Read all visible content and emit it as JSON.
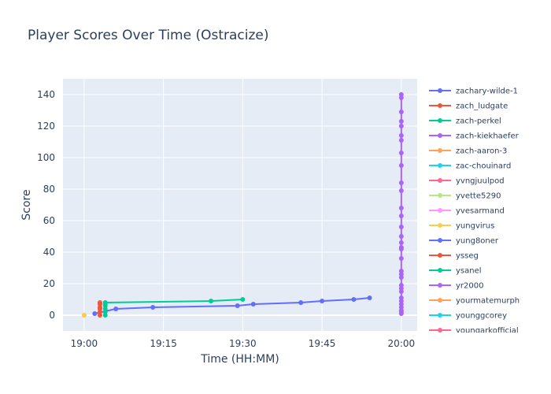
{
  "chart_data": {
    "type": "line",
    "title": "Player Scores Over Time (Ostracize)",
    "xlabel": "Time (HH:MM)",
    "ylabel": "Score",
    "x_unit": "HH:MM",
    "xlim": [
      "18:56",
      "20:03"
    ],
    "ylim": [
      -10,
      150
    ],
    "x_ticks": [
      "19:00",
      "19:15",
      "19:30",
      "19:45",
      "20:00"
    ],
    "y_ticks": [
      0,
      20,
      40,
      60,
      80,
      100,
      120,
      140
    ],
    "grid": true,
    "legend_position": "right",
    "colors": {
      "plot_bg": "#e5ecf6",
      "grid": "#ffffff",
      "text": "#2a3f5f"
    },
    "series": [
      {
        "name": "zachary-wilde-1",
        "color": "#636efa",
        "points": [
          [
            "19:02",
            1
          ],
          [
            "19:06",
            4
          ],
          [
            "19:13",
            5
          ],
          [
            "19:29",
            6
          ],
          [
            "19:32",
            7
          ],
          [
            "19:41",
            8
          ],
          [
            "19:45",
            9
          ],
          [
            "19:51",
            10
          ],
          [
            "19:54",
            11
          ]
        ]
      },
      {
        "name": "zach_ludgate",
        "color": "#ef553b",
        "points": [
          [
            "19:03",
            0
          ],
          [
            "19:03",
            2
          ],
          [
            "19:03",
            4
          ],
          [
            "19:03",
            5
          ],
          [
            "19:03",
            7
          ],
          [
            "19:03",
            8
          ]
        ]
      },
      {
        "name": "zach-perkel",
        "color": "#00cc96",
        "points": [
          [
            "19:04",
            0
          ],
          [
            "19:04",
            2
          ],
          [
            "19:04",
            4
          ],
          [
            "19:04",
            6
          ],
          [
            "19:04",
            7
          ],
          [
            "19:04",
            8
          ],
          [
            "19:24",
            9
          ],
          [
            "19:30",
            10
          ]
        ]
      },
      {
        "name": "zach-kiekhaefer",
        "color": "#ab63fa",
        "points": []
      },
      {
        "name": "zach-aaron-3",
        "color": "#ffa15a",
        "points": [
          [
            "19:00",
            0
          ]
        ]
      },
      {
        "name": "zac-chouinard",
        "color": "#19d3f3",
        "points": []
      },
      {
        "name": "yvngjuulpod",
        "color": "#ff6692",
        "points": []
      },
      {
        "name": "yvette5290",
        "color": "#b6e880",
        "points": []
      },
      {
        "name": "yvesarmand",
        "color": "#ff97ff",
        "points": []
      },
      {
        "name": "yungvirus",
        "color": "#fecb52",
        "points": [
          [
            "19:00",
            0
          ]
        ]
      },
      {
        "name": "yung8oner",
        "color": "#636efa",
        "points": []
      },
      {
        "name": "ysseg",
        "color": "#ef553b",
        "points": []
      },
      {
        "name": "ysanel",
        "color": "#00cc96",
        "points": []
      },
      {
        "name": "yr2000",
        "color": "#ab63fa",
        "points": [
          [
            "20:00",
            1
          ],
          [
            "20:00",
            2
          ],
          [
            "20:00",
            3
          ],
          [
            "20:00",
            5
          ],
          [
            "20:00",
            7
          ],
          [
            "20:00",
            9
          ],
          [
            "20:00",
            11
          ],
          [
            "20:00",
            15
          ],
          [
            "20:00",
            17
          ],
          [
            "20:00",
            19
          ],
          [
            "20:00",
            24
          ],
          [
            "20:00",
            26
          ],
          [
            "20:00",
            28
          ],
          [
            "20:00",
            36
          ],
          [
            "20:00",
            42
          ],
          [
            "20:00",
            43
          ],
          [
            "20:00",
            46
          ],
          [
            "20:00",
            50
          ],
          [
            "20:00",
            56
          ],
          [
            "20:00",
            63
          ],
          [
            "20:00",
            68
          ],
          [
            "20:00",
            79
          ],
          [
            "20:00",
            84
          ],
          [
            "20:00",
            95
          ],
          [
            "20:00",
            103
          ],
          [
            "20:00",
            111
          ],
          [
            "20:00",
            114
          ],
          [
            "20:00",
            120
          ],
          [
            "20:00",
            123
          ],
          [
            "20:00",
            129
          ],
          [
            "20:00",
            138
          ],
          [
            "20:00",
            140
          ]
        ]
      },
      {
        "name": "yourmatemurph",
        "color": "#ffa15a",
        "points": []
      },
      {
        "name": "younggcorey",
        "color": "#19d3f3",
        "points": []
      },
      {
        "name": "youngarkofficial",
        "color": "#ff6692",
        "points": []
      }
    ]
  }
}
